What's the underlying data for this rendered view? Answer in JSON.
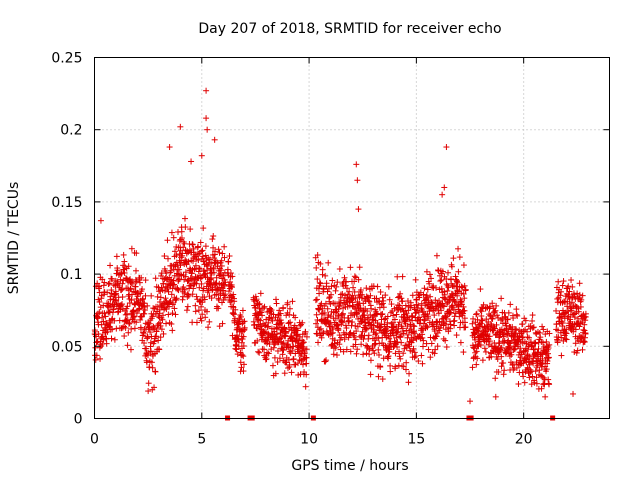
{
  "chart_data": {
    "type": "scatter",
    "title": "Day 207 of 2018, SRMTID for receiver echo",
    "xlabel": "GPS time / hours",
    "ylabel": "SRMTID / TECUs",
    "xlim": [
      0,
      24
    ],
    "ylim": [
      0,
      0.25
    ],
    "xticks": [
      0,
      5,
      10,
      15,
      20
    ],
    "xtick_labels": [
      "0",
      "5",
      "10",
      "15",
      "20"
    ],
    "yticks": [
      0,
      0.05,
      0.1,
      0.15,
      0.2,
      0.25
    ],
    "ytick_labels": [
      "0",
      "0.05",
      "0.1",
      "0.15",
      "0.2",
      "0.25"
    ],
    "grid": true,
    "color": "#e00000",
    "marker": "+",
    "series": [
      {
        "name": "SRMTID",
        "segments": [
          {
            "x_start": 0.0,
            "x_end": 6.1,
            "baseline": [
              [
                0,
                0.065
              ],
              [
                1,
                0.08
              ],
              [
                2,
                0.085
              ],
              [
                2.6,
                0.05
              ],
              [
                3.2,
                0.085
              ],
              [
                4,
                0.105
              ],
              [
                5,
                0.1
              ],
              [
                5.8,
                0.095
              ],
              [
                6.1,
                0.09
              ]
            ],
            "spread": 0.025
          },
          {
            "x_start": 6.2,
            "x_end": 7.0,
            "baseline": [
              [
                6.2,
                0.1
              ],
              [
                6.6,
                0.06
              ],
              [
                7.0,
                0.055
              ]
            ],
            "spread": 0.018
          },
          {
            "x_start": 7.4,
            "x_end": 9.9,
            "baseline": [
              [
                7.4,
                0.075
              ],
              [
                8,
                0.06
              ],
              [
                9,
                0.055
              ],
              [
                9.9,
                0.05
              ]
            ],
            "spread": 0.02
          },
          {
            "x_start": 10.3,
            "x_end": 17.3,
            "baseline": [
              [
                10.3,
                0.08
              ],
              [
                11,
                0.07
              ],
              [
                12,
                0.075
              ],
              [
                13,
                0.065
              ],
              [
                14,
                0.06
              ],
              [
                15,
                0.065
              ],
              [
                16,
                0.08
              ],
              [
                17,
                0.085
              ],
              [
                17.3,
                0.075
              ]
            ],
            "spread": 0.025
          },
          {
            "x_start": 17.6,
            "x_end": 21.2,
            "baseline": [
              [
                17.6,
                0.05
              ],
              [
                18,
                0.06
              ],
              [
                19,
                0.055
              ],
              [
                20,
                0.05
              ],
              [
                21,
                0.04
              ],
              [
                21.2,
                0.04
              ]
            ],
            "spread": 0.02
          },
          {
            "x_start": 21.5,
            "x_end": 22.9,
            "baseline": [
              [
                21.5,
                0.07
              ],
              [
                22,
                0.075
              ],
              [
                22.9,
                0.065
              ]
            ],
            "spread": 0.02
          }
        ],
        "outliers": [
          {
            "x": 5.2,
            "y": 0.227
          },
          {
            "x": 5.2,
            "y": 0.208
          },
          {
            "x": 5.25,
            "y": 0.2
          },
          {
            "x": 4.0,
            "y": 0.202
          },
          {
            "x": 3.5,
            "y": 0.188
          },
          {
            "x": 4.5,
            "y": 0.178
          },
          {
            "x": 5.0,
            "y": 0.182
          },
          {
            "x": 5.6,
            "y": 0.193
          },
          {
            "x": 16.4,
            "y": 0.188
          },
          {
            "x": 12.2,
            "y": 0.176
          },
          {
            "x": 12.25,
            "y": 0.165
          },
          {
            "x": 16.3,
            "y": 0.16
          },
          {
            "x": 16.2,
            "y": 0.155
          },
          {
            "x": 12.3,
            "y": 0.145
          },
          {
            "x": 2.5,
            "y": 0.019
          },
          {
            "x": 17.5,
            "y": 0.012
          },
          {
            "x": 18.7,
            "y": 0.015
          },
          {
            "x": 21.0,
            "y": 0.015
          },
          {
            "x": 22.3,
            "y": 0.017
          },
          {
            "x": 0.3,
            "y": 0.137
          }
        ]
      }
    ],
    "gap_markers_x": [
      6.2,
      7.25,
      7.35,
      10.2,
      17.45,
      17.55,
      21.35
    ]
  }
}
